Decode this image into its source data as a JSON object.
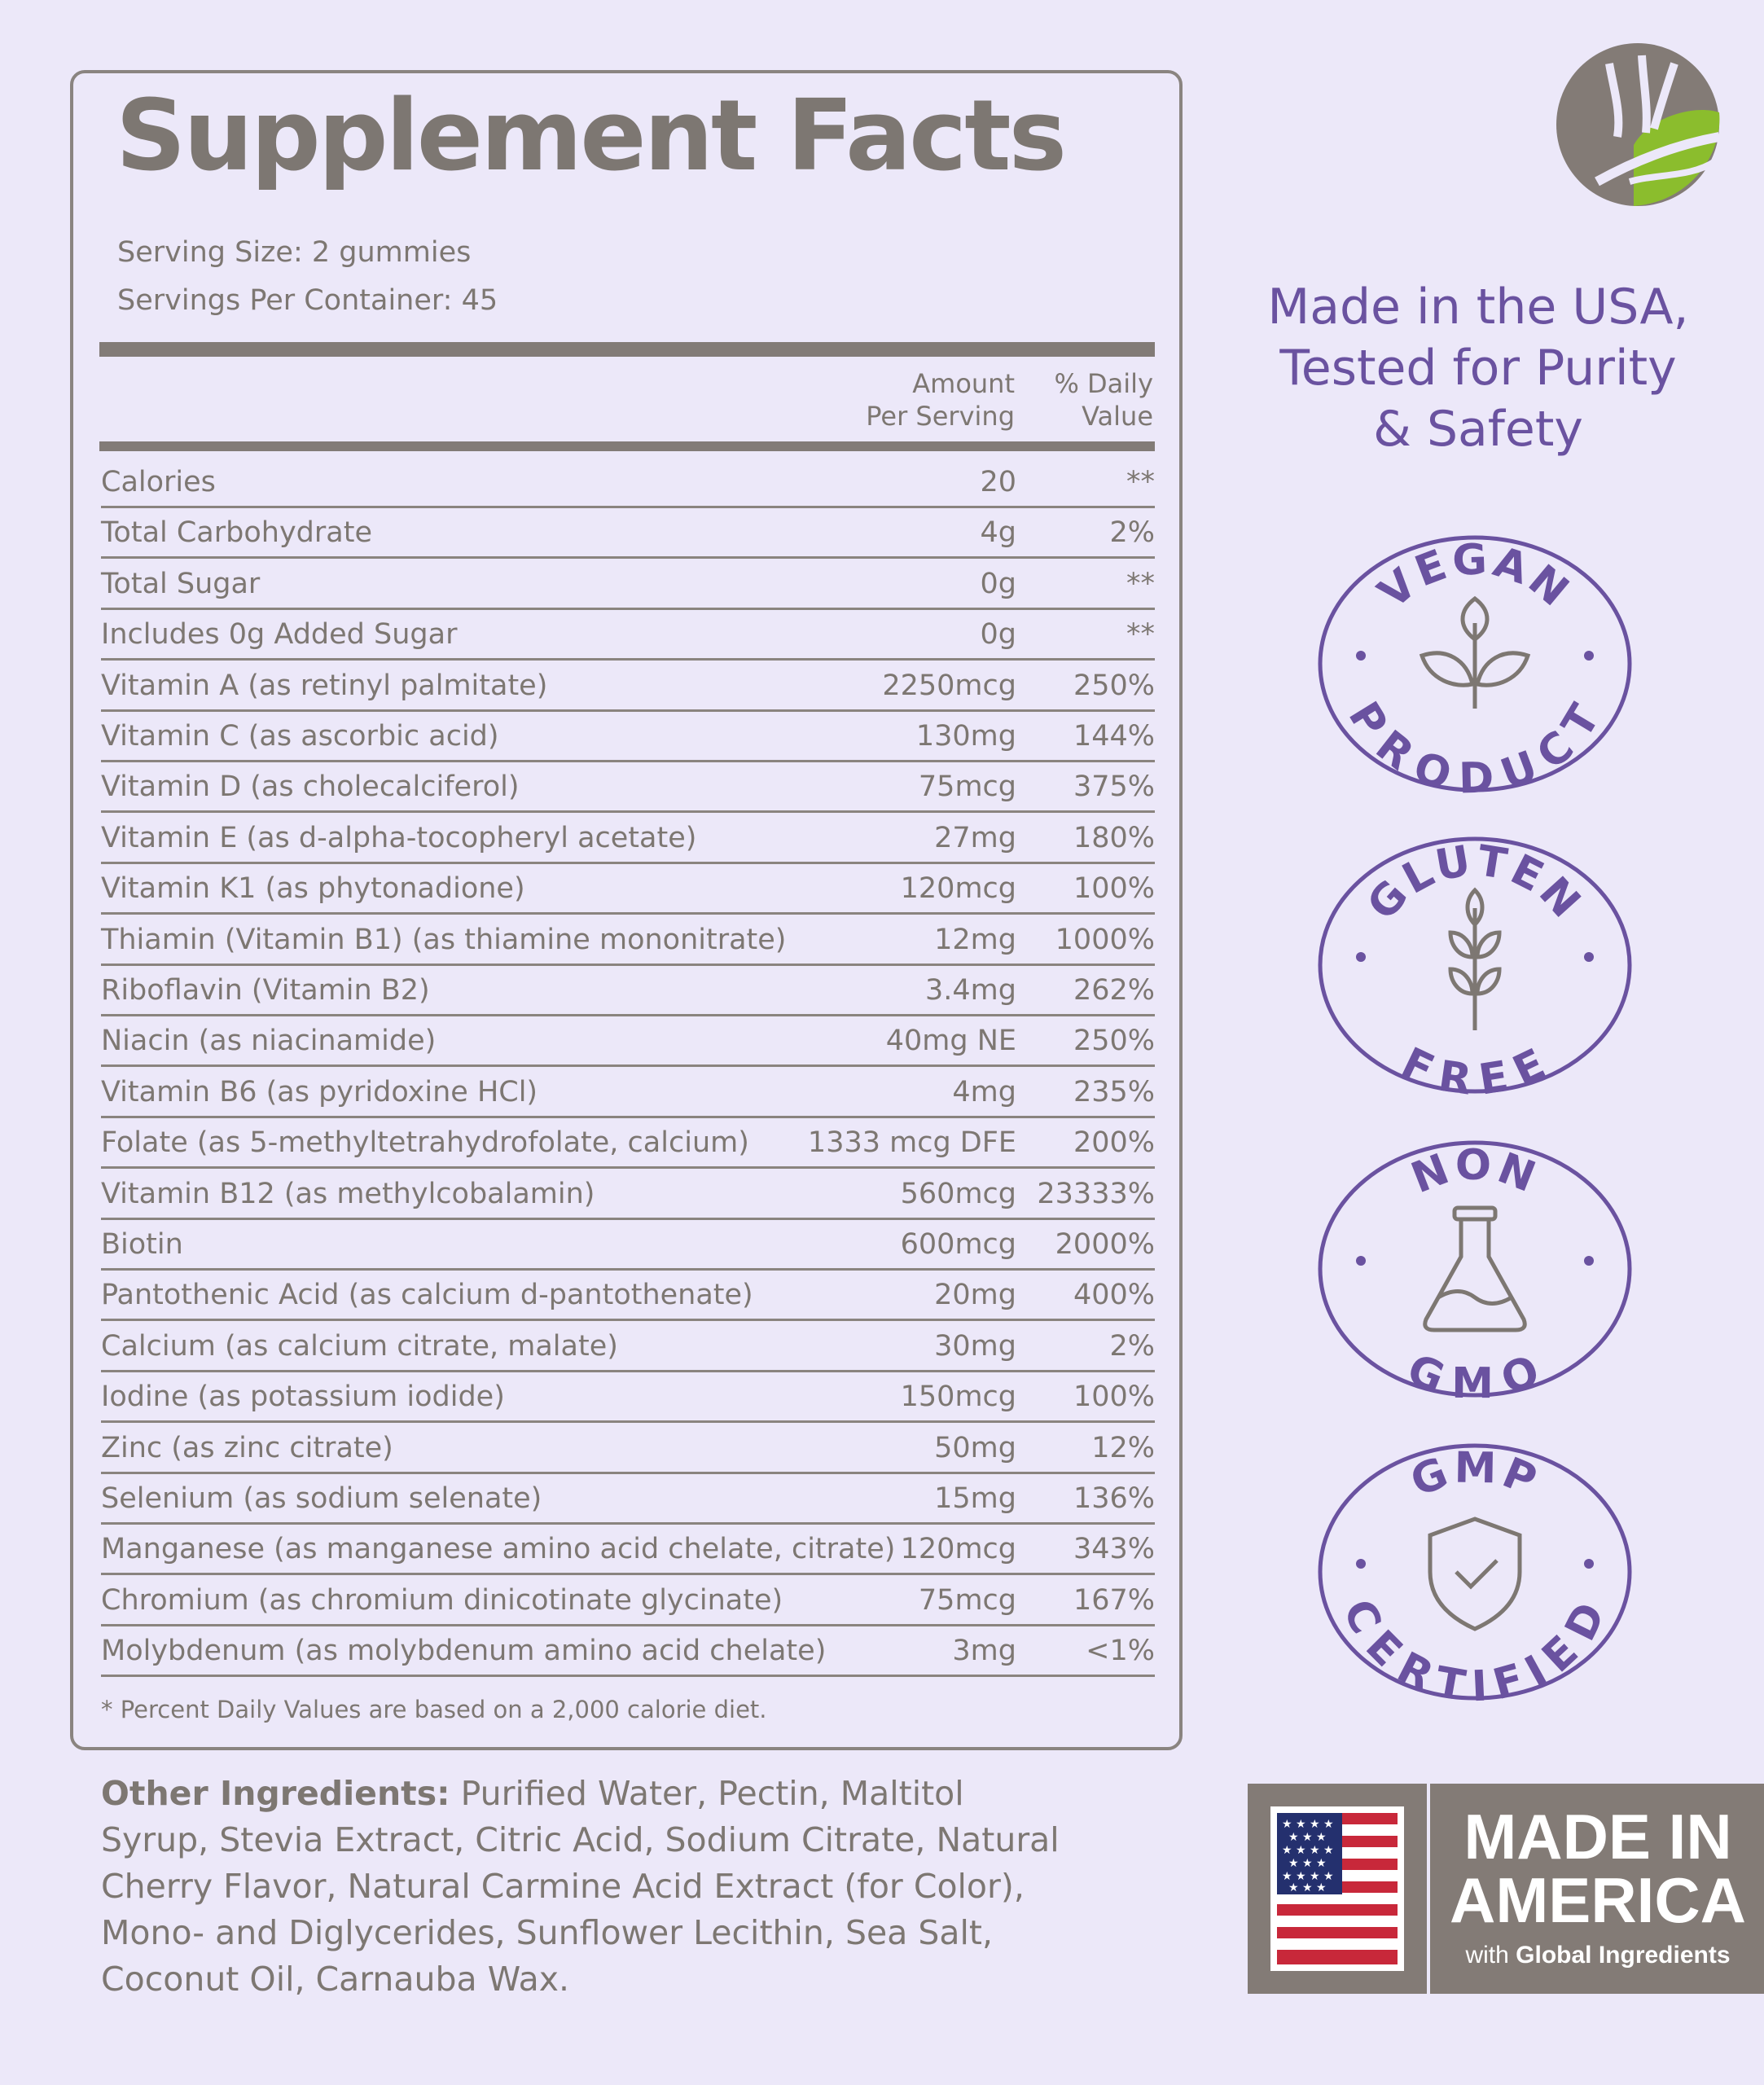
{
  "panel": {
    "title": "Supplement Facts",
    "serving_size": "Serving Size: 2 gummies",
    "servings_per_container": "Servings Per Container: 45",
    "col_amount": [
      "Amount",
      "Per Serving"
    ],
    "col_dv": [
      "% Daily",
      "Value"
    ],
    "rows": [
      {
        "name": "Calories",
        "amount": "20",
        "dv": "**"
      },
      {
        "name": "Total Carbohydrate",
        "amount": "4g",
        "dv": "2%"
      },
      {
        "name": "Total Sugar",
        "amount": "0g",
        "dv": "**"
      },
      {
        "name": "Includes 0g Added Sugar",
        "amount": "0g",
        "dv": "**"
      },
      {
        "name": "Vitamin A (as retinyl palmitate)",
        "amount": "2250mcg",
        "dv": "250%"
      },
      {
        "name": "Vitamin C (as ascorbic acid)",
        "amount": "130mg",
        "dv": "144%"
      },
      {
        "name": "Vitamin D (as cholecalciferol)",
        "amount": "75mcg",
        "dv": "375%"
      },
      {
        "name": "Vitamin E (as d-alpha-tocopheryl acetate)",
        "amount": "27mg",
        "dv": "180%"
      },
      {
        "name": "Vitamin K1 (as phytonadione)",
        "amount": "120mcg",
        "dv": "100%"
      },
      {
        "name": "Thiamin (Vitamin B1) (as thiamine mononitrate)",
        "amount": "12mg",
        "dv": "1000%"
      },
      {
        "name": "Riboflavin (Vitamin B2)",
        "amount": "3.4mg",
        "dv": "262%"
      },
      {
        "name": "Niacin (as niacinamide)",
        "amount": "40mg NE",
        "dv": "250%"
      },
      {
        "name": "Vitamin B6 (as pyridoxine HCl)",
        "amount": "4mg",
        "dv": "235%"
      },
      {
        "name": "Folate (as 5-methyltetrahydrofolate, calcium)",
        "amount": "1333 mcg DFE",
        "dv": "200%"
      },
      {
        "name": "Vitamin B12 (as methylcobalamin)",
        "amount": "560mcg",
        "dv": "23333%"
      },
      {
        "name": "Biotin",
        "amount": "600mcg",
        "dv": "2000%"
      },
      {
        "name": "Pantothenic Acid (as calcium d-pantothenate)",
        "amount": "20mg",
        "dv": "400%"
      },
      {
        "name": "Calcium (as calcium citrate, malate)",
        "amount": "30mg",
        "dv": "2%"
      },
      {
        "name": "Iodine (as potassium iodide)",
        "amount": "150mcg",
        "dv": "100%"
      },
      {
        "name": "Zinc (as zinc citrate)",
        "amount": "50mg",
        "dv": "12%"
      },
      {
        "name": "Selenium (as sodium selenate)",
        "amount": "15mg",
        "dv": "136%"
      },
      {
        "name": "Manganese (as manganese amino acid chelate, citrate)",
        "amount": "120mcg",
        "dv": "343%"
      },
      {
        "name": "Chromium (as chromium dinicotinate glycinate)",
        "amount": "75mcg",
        "dv": "167%"
      },
      {
        "name": "Molybdenum (as molybdenum amino acid chelate)",
        "amount": "3mg",
        "dv": "<1%"
      }
    ],
    "footnote": "* Percent Daily Values are based on a 2,000 calorie diet."
  },
  "ingredients": {
    "label": "Other Ingredients:",
    "text": " Purified Water, Pectin, Maltitol Syrup, Stevia Extract, Citric Acid, Sodium Citrate, Natural Cherry Flavor, Natural Carmine Acid Extract (for Color), Mono- and Diglycerides, Sunflower Lecithin, Sea Salt, Coconut Oil, Carnauba Wax."
  },
  "tagline": [
    "Made in the USA,",
    "Tested for Purity",
    "& Safety"
  ],
  "badges": [
    {
      "top": "VEGAN",
      "bottom": "PRODUCT",
      "icon": "leaf-sprout-icon"
    },
    {
      "top": "GLUTEN",
      "bottom": "FREE",
      "icon": "wheat-icon"
    },
    {
      "top": "NON",
      "bottom": "GMO",
      "icon": "flask-icon"
    },
    {
      "top": "GMP",
      "bottom": "CERTIFIED",
      "icon": "shield-check-icon"
    }
  ],
  "made_in": {
    "line1": "MADE IN",
    "line2": "AMERICA",
    "with": "with",
    "global": "Global Ingredients"
  },
  "colors": {
    "background": "#ece8f9",
    "text_gray": "#7d7772",
    "purple": "#6a52a0",
    "green": "#8bbd2d",
    "logo_gray": "#837b76",
    "flag_red": "#c8283a",
    "flag_blue": "#24306e"
  }
}
